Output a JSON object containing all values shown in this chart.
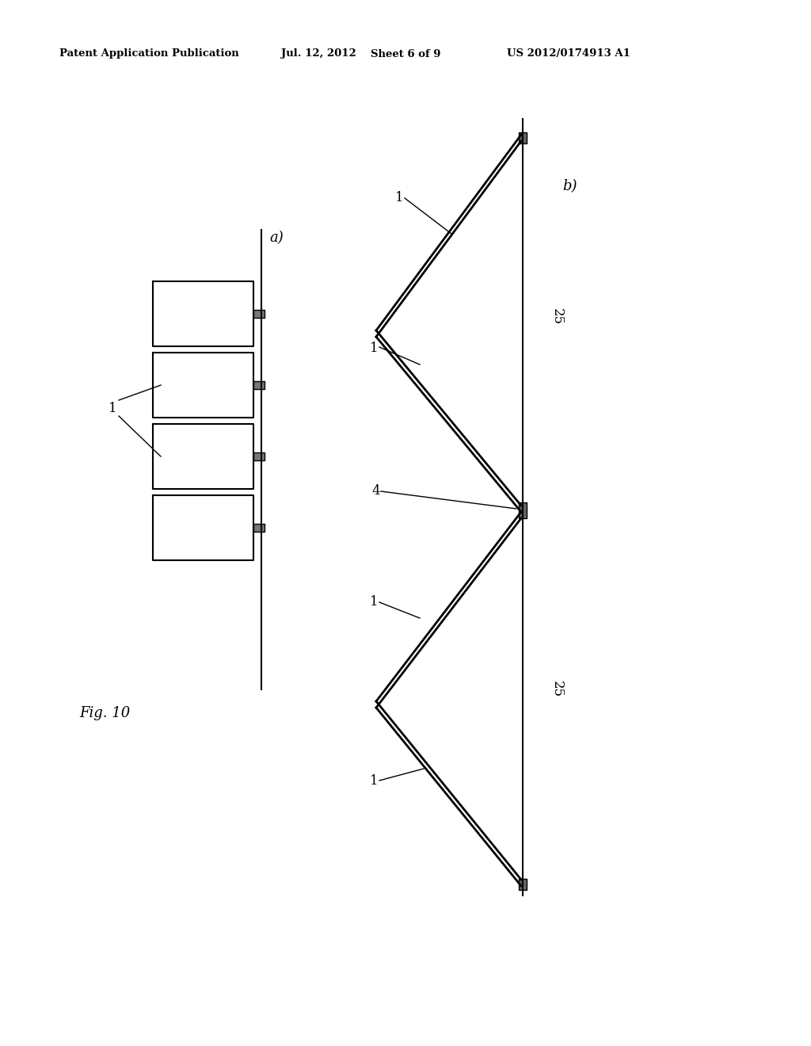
{
  "bg_color": "#ffffff",
  "header_left": "Patent Application Publication",
  "header_date": "Jul. 12, 2012",
  "header_sheet": "Sheet 6 of 9",
  "header_patent": "US 2012/0174913 A1",
  "fig_label": "Fig. 10",
  "label_a": "a)",
  "label_b": "b)",
  "label_1": "1",
  "label_4": "4",
  "label_25": "25",
  "lw_main": 1.5,
  "lw_thin": 1.0,
  "lw_panel": 2.0
}
